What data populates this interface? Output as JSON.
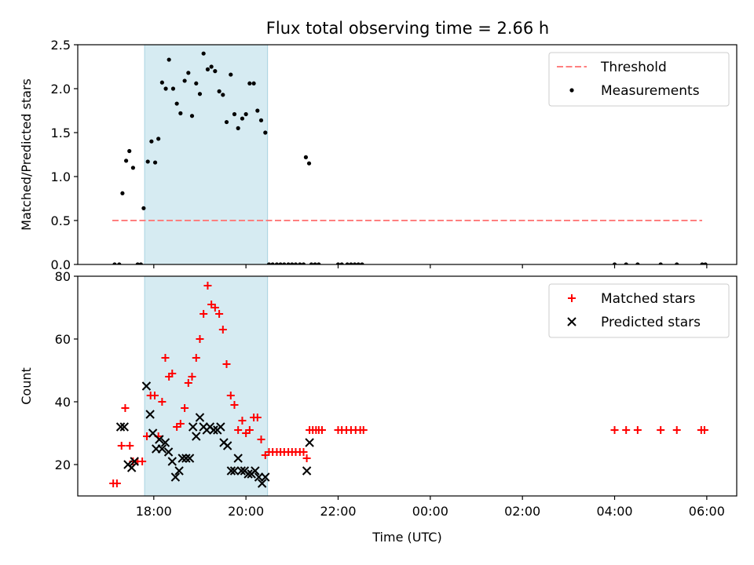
{
  "chart_data": [
    {
      "type": "scatter",
      "title": "Flux total observing time = 2.66 h",
      "xlabel": "",
      "ylabel": "Matched/Predicted stars",
      "xlim": [
        16.35,
        30.65
      ],
      "ylim": [
        0,
        2.5
      ],
      "yticks": [
        0.0,
        0.5,
        1.0,
        1.5,
        2.0,
        2.5
      ],
      "ytick_labels": [
        "0.0",
        "0.5",
        "1.0",
        "1.5",
        "2.0",
        "2.5"
      ],
      "highlight_span": [
        17.8,
        20.47
      ],
      "threshold": {
        "name": "Threshold",
        "value": 0.5,
        "x_range": [
          17.1,
          29.9
        ],
        "color": "#ff7f7f"
      },
      "series": [
        {
          "name": "Measurements",
          "color": "#000000",
          "x": [
            17.15,
            17.25,
            17.32,
            17.4,
            17.47,
            17.55,
            17.65,
            17.72,
            17.78,
            17.87,
            17.95,
            18.03,
            18.1,
            18.18,
            18.26,
            18.33,
            18.42,
            18.5,
            18.58,
            18.67,
            18.75,
            18.83,
            18.92,
            19.0,
            19.08,
            19.17,
            19.25,
            19.33,
            19.42,
            19.5,
            19.58,
            19.67,
            19.75,
            19.83,
            19.92,
            20.0,
            20.08,
            20.17,
            20.25,
            20.33,
            20.42,
            20.5,
            20.58,
            20.67,
            20.75,
            20.83,
            20.92,
            21.0,
            21.08,
            21.17,
            21.25,
            21.3,
            21.37,
            21.42,
            21.5,
            21.58,
            22.0,
            22.08,
            22.2,
            22.28,
            22.36,
            22.44,
            22.52,
            28.0,
            28.25,
            28.5,
            29.0,
            29.35,
            29.9,
            29.97
          ],
          "y": [
            0.0,
            0.0,
            0.81,
            1.18,
            1.29,
            1.1,
            0.0,
            0.0,
            0.64,
            1.17,
            1.4,
            1.16,
            1.43,
            2.07,
            2.0,
            2.33,
            2.0,
            1.83,
            1.72,
            2.09,
            2.18,
            1.69,
            2.06,
            1.94,
            2.4,
            2.22,
            2.25,
            2.2,
            1.97,
            1.93,
            1.62,
            2.16,
            1.71,
            1.55,
            1.66,
            1.71,
            2.06,
            2.06,
            1.75,
            1.64,
            1.5,
            0.0,
            0.0,
            0.0,
            0.0,
            0.0,
            0.0,
            0.0,
            0.0,
            0.0,
            0.0,
            1.22,
            1.15,
            0.0,
            0.0,
            0.0,
            0.0,
            0.0,
            0.0,
            0.0,
            0.0,
            0.0,
            0.0,
            0.0,
            0.0,
            0.0,
            0.0,
            0.0,
            0.0,
            0.0
          ]
        }
      ],
      "legend": [
        "Threshold",
        "Measurements"
      ],
      "legend_position": "top-right"
    },
    {
      "type": "scatter",
      "title": "",
      "xlabel": "Time (UTC)",
      "ylabel": "Count",
      "xlim": [
        16.35,
        30.65
      ],
      "ylim": [
        10,
        80
      ],
      "yticks": [
        20,
        40,
        60,
        80
      ],
      "ytick_labels": [
        "20",
        "40",
        "60",
        "80"
      ],
      "xticks": [
        18,
        20,
        22,
        24,
        26,
        28,
        30
      ],
      "xtick_labels": [
        "18:00",
        "20:00",
        "22:00",
        "00:00",
        "02:00",
        "04:00",
        "06:00"
      ],
      "highlight_span": [
        17.8,
        20.47
      ],
      "series": [
        {
          "name": "Matched stars",
          "marker": "plus",
          "color": "#ff0000",
          "x": [
            17.12,
            17.2,
            17.3,
            17.38,
            17.48,
            17.55,
            17.65,
            17.75,
            17.85,
            17.93,
            18.02,
            18.1,
            18.18,
            18.25,
            18.33,
            18.4,
            18.5,
            18.58,
            18.67,
            18.75,
            18.83,
            18.92,
            19.0,
            19.08,
            19.17,
            19.25,
            19.33,
            19.42,
            19.5,
            19.58,
            19.67,
            19.75,
            19.83,
            19.92,
            20.0,
            20.08,
            20.17,
            20.25,
            20.33,
            20.42,
            20.5,
            20.58,
            20.67,
            20.75,
            20.83,
            20.92,
            21.0,
            21.08,
            21.17,
            21.25,
            21.32,
            21.38,
            21.45,
            21.52,
            21.58,
            21.65,
            22.0,
            22.08,
            22.18,
            22.28,
            22.38,
            22.48,
            22.55,
            28.0,
            28.25,
            28.5,
            29.0,
            29.35,
            29.88,
            29.95
          ],
          "y": [
            14,
            14,
            26,
            38,
            26,
            21,
            21,
            21,
            29,
            42,
            42,
            29,
            40,
            54,
            48,
            49,
            32,
            33,
            38,
            46,
            48,
            54,
            60,
            68,
            77,
            71,
            70,
            68,
            63,
            52,
            42,
            39,
            31,
            34,
            30,
            31,
            35,
            35,
            28,
            23,
            24,
            24,
            24,
            24,
            24,
            24,
            24,
            24,
            24,
            24,
            22,
            31,
            31,
            31,
            31,
            31,
            31,
            31,
            31,
            31,
            31,
            31,
            31,
            31,
            31,
            31,
            31,
            31,
            31,
            31
          ]
        },
        {
          "name": "Predicted stars",
          "marker": "x",
          "color": "#000000",
          "x": [
            17.28,
            17.36,
            17.44,
            17.52,
            17.58,
            17.84,
            17.92,
            17.98,
            18.05,
            18.12,
            18.18,
            18.25,
            18.32,
            18.4,
            18.47,
            18.55,
            18.62,
            18.7,
            18.78,
            18.85,
            18.92,
            19.0,
            19.08,
            19.15,
            19.22,
            19.3,
            19.38,
            19.45,
            19.52,
            19.6,
            19.68,
            19.75,
            19.83,
            19.9,
            19.97,
            20.05,
            20.12,
            20.2,
            20.28,
            20.35,
            20.42,
            21.32,
            21.38
          ],
          "y": [
            32,
            32,
            20,
            19,
            21,
            45,
            36,
            30,
            25,
            28,
            25,
            27,
            24,
            21,
            16,
            18,
            22,
            22,
            22,
            32,
            29,
            35,
            32,
            31,
            32,
            31,
            31,
            32,
            27,
            26,
            18,
            18,
            22,
            18,
            18,
            17,
            17,
            18,
            16,
            14,
            16,
            18,
            27
          ]
        }
      ],
      "legend": [
        "Matched stars",
        "Predicted stars"
      ],
      "legend_position": "top-right"
    }
  ]
}
